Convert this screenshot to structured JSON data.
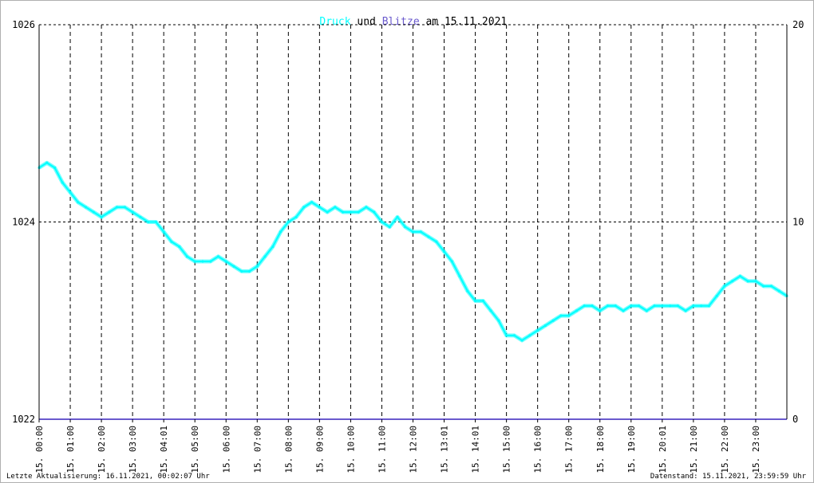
{
  "chart_data": {
    "type": "line",
    "title_parts": {
      "druck": "Druck",
      "und": " und ",
      "blitze": "Blitze",
      "date": " am 15.11.2021"
    },
    "colors": {
      "druck": "#00ffff",
      "blitze": "#6a5acd",
      "grid": "#000000",
      "text": "#000000"
    },
    "y_left": {
      "ticks": [
        "1026",
        "1024",
        "1022"
      ],
      "ylim": [
        1022,
        1026
      ]
    },
    "y_right": {
      "ticks": [
        "20",
        "10",
        "0"
      ],
      "ylim": [
        0,
        20
      ]
    },
    "x_ticks": [
      "15. 00:00",
      "15. 01:00",
      "15. 02:00",
      "15. 03:00",
      "15. 04:01",
      "15. 05:00",
      "15. 06:00",
      "15. 07:00",
      "15. 08:00",
      "15. 09:00",
      "15. 10:00",
      "15. 11:00",
      "15. 12:00",
      "15. 13:01",
      "15. 14:01",
      "15. 15:00",
      "15. 16:00",
      "15. 17:00",
      "15. 18:00",
      "15. 19:00",
      "15. 20:01",
      "15. 21:00",
      "15. 22:00",
      "15. 23:00"
    ],
    "grid": true,
    "series": [
      {
        "key": "druck",
        "x_hours": [
          0,
          0.25,
          0.5,
          0.75,
          1,
          1.25,
          1.5,
          1.75,
          2,
          2.25,
          2.5,
          2.75,
          3,
          3.25,
          3.5,
          3.75,
          4,
          4.25,
          4.5,
          4.75,
          5,
          5.25,
          5.5,
          5.75,
          6,
          6.25,
          6.5,
          6.75,
          7,
          7.25,
          7.5,
          7.75,
          8,
          8.25,
          8.5,
          8.75,
          9,
          9.25,
          9.5,
          9.75,
          10,
          10.25,
          10.5,
          10.75,
          11,
          11.25,
          11.5,
          11.75,
          12,
          12.25,
          12.5,
          12.75,
          13,
          13.25,
          13.5,
          13.75,
          14,
          14.25,
          14.5,
          14.75,
          15,
          15.25,
          15.5,
          15.75,
          16,
          16.25,
          16.5,
          16.75,
          17,
          17.25,
          17.5,
          17.75,
          18,
          18.25,
          18.5,
          18.75,
          19,
          19.25,
          19.5,
          19.75,
          20,
          20.25,
          20.5,
          20.75,
          21,
          21.25,
          21.5,
          21.75,
          22,
          22.25,
          22.5,
          22.75,
          23,
          23.25,
          23.5,
          23.75,
          24
        ],
        "values": [
          1024.55,
          1024.6,
          1024.55,
          1024.4,
          1024.3,
          1024.2,
          1024.15,
          1024.1,
          1024.05,
          1024.1,
          1024.15,
          1024.15,
          1024.1,
          1024.05,
          1024.0,
          1024.0,
          1023.9,
          1023.8,
          1023.75,
          1023.65,
          1023.6,
          1023.6,
          1023.6,
          1023.65,
          1023.6,
          1023.55,
          1023.5,
          1023.5,
          1023.55,
          1023.65,
          1023.75,
          1023.9,
          1024.0,
          1024.05,
          1024.15,
          1024.2,
          1024.15,
          1024.1,
          1024.15,
          1024.1,
          1024.1,
          1024.1,
          1024.15,
          1024.1,
          1024.0,
          1023.95,
          1024.05,
          1023.95,
          1023.9,
          1023.9,
          1023.85,
          1023.8,
          1023.7,
          1023.6,
          1023.45,
          1023.3,
          1023.2,
          1023.2,
          1023.1,
          1023.0,
          1022.85,
          1022.85,
          1022.8,
          1022.85,
          1022.9,
          1022.95,
          1023.0,
          1023.05,
          1023.05,
          1023.1,
          1023.15,
          1023.15,
          1023.1,
          1023.15,
          1023.15,
          1023.1,
          1023.15,
          1023.15,
          1023.1,
          1023.15,
          1023.15,
          1023.15,
          1023.15,
          1023.1,
          1023.15,
          1023.15,
          1023.15,
          1023.25,
          1023.35,
          1023.4,
          1023.45,
          1023.4,
          1023.4,
          1023.35,
          1023.35,
          1023.3,
          1023.25
        ]
      },
      {
        "key": "blitze",
        "x_hours": [
          0,
          24
        ],
        "values": [
          0,
          0
        ]
      }
    ]
  },
  "footer": {
    "left": "Letzte Aktualisierung: 16.11.2021, 00:02:07 Uhr",
    "right": "Datenstand: 15.11.2021, 23:59:59 Uhr"
  }
}
